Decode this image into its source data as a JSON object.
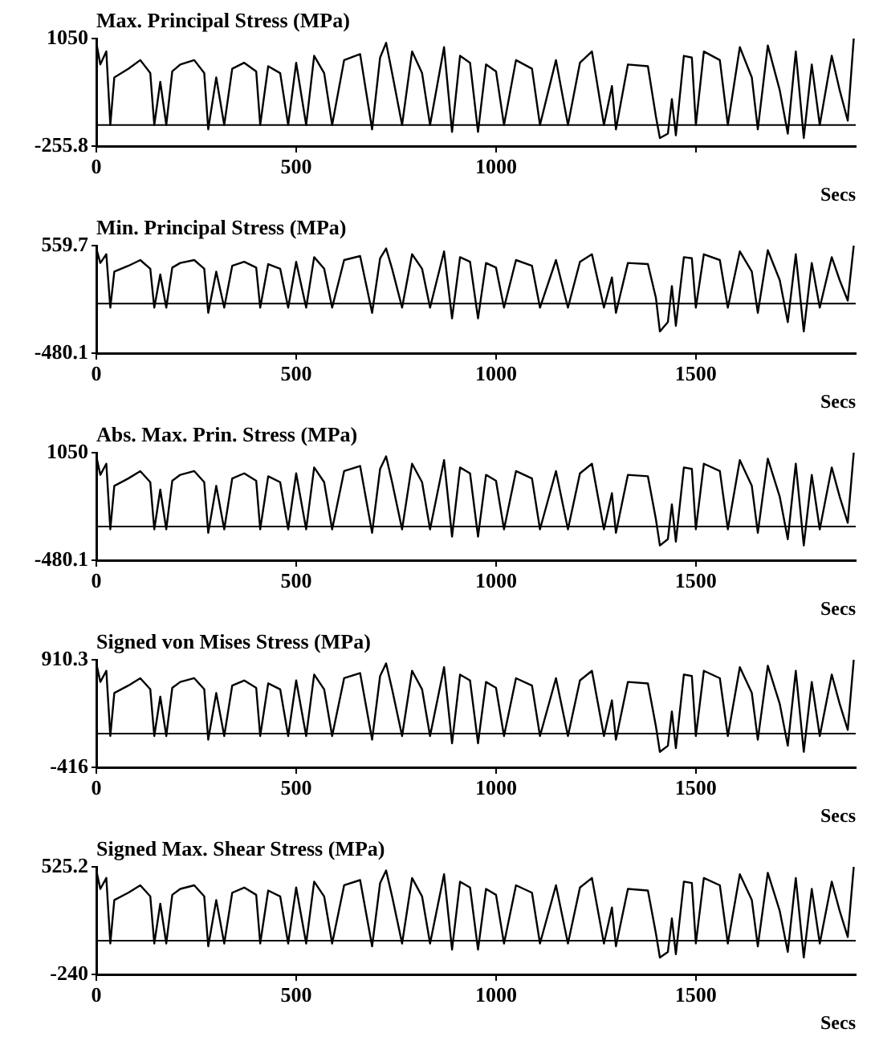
{
  "chart_data": [
    {
      "type": "line",
      "title": "Max. Principal Stress (MPa)",
      "xlabel": "Secs",
      "color": "#000000",
      "grid": false,
      "legend": false,
      "xlim": [
        0,
        1900
      ],
      "xticks": [
        0,
        500,
        1000,
        {
          "value": 1500,
          "label": null
        }
      ],
      "ylim": [
        -255.8,
        1050
      ],
      "yticks": [
        -255.8,
        1050
      ],
      "ref_lines": [
        {
          "axis": "y",
          "value": 0
        }
      ],
      "x": [
        0,
        10,
        25,
        35,
        45,
        80,
        110,
        135,
        145,
        160,
        175,
        190,
        210,
        245,
        270,
        280,
        300,
        320,
        340,
        370,
        400,
        410,
        430,
        460,
        480,
        500,
        525,
        545,
        570,
        590,
        620,
        660,
        690,
        710,
        725,
        740,
        765,
        790,
        815,
        835,
        870,
        890,
        910,
        935,
        955,
        975,
        1000,
        1020,
        1050,
        1090,
        1110,
        1150,
        1180,
        1210,
        1240,
        1270,
        1290,
        1300,
        1330,
        1380,
        1400,
        1410,
        1430,
        1440,
        1450,
        1470,
        1490,
        1500,
        1520,
        1560,
        1580,
        1610,
        1640,
        1655,
        1680,
        1710,
        1730,
        1750,
        1770,
        1790,
        1810,
        1840,
        1860,
        1880,
        1895
      ],
      "values": [
        998,
        735,
        893,
        0,
        578,
        683,
        788,
        630,
        0,
        525,
        0,
        651,
        735,
        788,
        630,
        -53,
        578,
        0,
        683,
        756,
        651,
        0,
        714,
        630,
        0,
        756,
        0,
        840,
        630,
        0,
        788,
        861,
        -53,
        819,
        998,
        630,
        0,
        893,
        630,
        0,
        945,
        -84,
        840,
        756,
        -84,
        735,
        651,
        0,
        788,
        683,
        0,
        788,
        0,
        756,
        893,
        0,
        473,
        -53,
        735,
        714,
        105,
        -158,
        -105,
        315,
        -126,
        840,
        819,
        0,
        893,
        788,
        0,
        945,
        578,
        -53,
        966,
        420,
        -105,
        893,
        -158,
        735,
        0,
        840,
        420,
        53,
        1050
      ]
    },
    {
      "type": "line",
      "title": "Min. Principal Stress (MPa)",
      "xlabel": "Secs",
      "color": "#000000",
      "grid": false,
      "legend": false,
      "xlim": [
        0,
        1900
      ],
      "xticks": [
        0,
        500,
        1000,
        1500
      ],
      "ylim": [
        -480.1,
        559.7
      ],
      "yticks": [
        -480.1,
        559.7
      ],
      "ref_lines": [
        {
          "axis": "y",
          "value": 0
        }
      ],
      "x": [
        0,
        10,
        25,
        35,
        45,
        80,
        110,
        135,
        145,
        160,
        175,
        190,
        210,
        245,
        270,
        280,
        300,
        320,
        340,
        370,
        400,
        410,
        430,
        460,
        480,
        500,
        525,
        545,
        570,
        590,
        620,
        660,
        690,
        710,
        725,
        740,
        765,
        790,
        815,
        835,
        870,
        890,
        910,
        935,
        955,
        975,
        1000,
        1020,
        1050,
        1090,
        1110,
        1150,
        1180,
        1210,
        1240,
        1270,
        1290,
        1300,
        1330,
        1380,
        1400,
        1410,
        1430,
        1440,
        1450,
        1470,
        1490,
        1500,
        1520,
        1560,
        1580,
        1610,
        1640,
        1655,
        1680,
        1710,
        1730,
        1750,
        1770,
        1790,
        1810,
        1840,
        1860,
        1880,
        1895
      ],
      "values": [
        532,
        392,
        476,
        -40,
        308,
        364,
        420,
        336,
        -40,
        280,
        -40,
        347,
        392,
        420,
        336,
        -90,
        308,
        -40,
        364,
        403,
        347,
        -40,
        381,
        336,
        -40,
        403,
        -40,
        448,
        336,
        -40,
        420,
        459,
        -90,
        437,
        532,
        336,
        -40,
        476,
        336,
        -40,
        504,
        -144,
        448,
        403,
        -144,
        392,
        347,
        -40,
        420,
        364,
        -40,
        420,
        -40,
        403,
        476,
        -40,
        252,
        -90,
        392,
        381,
        56,
        -270,
        -180,
        168,
        -216,
        448,
        437,
        -40,
        476,
        420,
        -40,
        504,
        308,
        -90,
        515,
        224,
        -180,
        476,
        -270,
        392,
        -40,
        448,
        224,
        28,
        559
      ]
    },
    {
      "type": "line",
      "title": "Abs. Max. Prin. Stress (MPa)",
      "xlabel": "Secs",
      "color": "#000000",
      "grid": false,
      "legend": false,
      "xlim": [
        0,
        1900
      ],
      "xticks": [
        0,
        500,
        1000,
        1500
      ],
      "ylim": [
        -480.1,
        1050
      ],
      "yticks": [
        -480.1,
        1050
      ],
      "ref_lines": [
        {
          "axis": "y",
          "value": 0
        }
      ],
      "x": [
        0,
        10,
        25,
        35,
        45,
        80,
        110,
        135,
        145,
        160,
        175,
        190,
        210,
        245,
        270,
        280,
        300,
        320,
        340,
        370,
        400,
        410,
        430,
        460,
        480,
        500,
        525,
        545,
        570,
        590,
        620,
        660,
        690,
        710,
        725,
        740,
        765,
        790,
        815,
        835,
        870,
        890,
        910,
        935,
        955,
        975,
        1000,
        1020,
        1050,
        1090,
        1110,
        1150,
        1180,
        1210,
        1240,
        1270,
        1290,
        1300,
        1330,
        1380,
        1400,
        1410,
        1430,
        1440,
        1450,
        1470,
        1490,
        1500,
        1520,
        1560,
        1580,
        1610,
        1640,
        1655,
        1680,
        1710,
        1730,
        1750,
        1770,
        1790,
        1810,
        1840,
        1860,
        1880,
        1895
      ],
      "values": [
        998,
        735,
        893,
        -40,
        578,
        683,
        788,
        630,
        -40,
        525,
        -40,
        651,
        735,
        788,
        630,
        -90,
        578,
        -40,
        683,
        756,
        651,
        -40,
        714,
        630,
        -40,
        756,
        -40,
        840,
        630,
        -40,
        788,
        861,
        -90,
        819,
        998,
        630,
        -40,
        893,
        630,
        -40,
        945,
        -144,
        840,
        756,
        -144,
        735,
        651,
        -40,
        788,
        683,
        -40,
        788,
        -40,
        756,
        893,
        -40,
        473,
        -90,
        735,
        714,
        105,
        -270,
        -180,
        315,
        -216,
        840,
        819,
        -40,
        893,
        788,
        -40,
        945,
        578,
        -90,
        966,
        420,
        -180,
        893,
        -270,
        735,
        -40,
        840,
        420,
        53,
        1050
      ]
    },
    {
      "type": "line",
      "title": "Signed von Mises Stress (MPa)",
      "xlabel": "Secs",
      "color": "#000000",
      "grid": false,
      "legend": false,
      "xlim": [
        0,
        1900
      ],
      "xticks": [
        0,
        500,
        1000,
        1500
      ],
      "ylim": [
        -416,
        910.3
      ],
      "yticks": [
        -416,
        910.3
      ],
      "ref_lines": [
        {
          "axis": "y",
          "value": 0
        }
      ],
      "x": [
        0,
        10,
        25,
        35,
        45,
        80,
        110,
        135,
        145,
        160,
        175,
        190,
        210,
        245,
        270,
        280,
        300,
        320,
        340,
        370,
        400,
        410,
        430,
        460,
        480,
        500,
        525,
        545,
        570,
        590,
        620,
        660,
        690,
        710,
        725,
        740,
        765,
        790,
        815,
        835,
        870,
        890,
        910,
        935,
        955,
        975,
        1000,
        1020,
        1050,
        1090,
        1110,
        1150,
        1180,
        1210,
        1240,
        1270,
        1290,
        1300,
        1330,
        1380,
        1400,
        1410,
        1430,
        1440,
        1450,
        1470,
        1490,
        1500,
        1520,
        1560,
        1580,
        1610,
        1640,
        1655,
        1680,
        1710,
        1730,
        1750,
        1770,
        1790,
        1810,
        1840,
        1860,
        1880,
        1895
      ],
      "values": [
        865,
        637,
        774,
        -30,
        501,
        592,
        683,
        546,
        -30,
        455,
        -30,
        564,
        637,
        683,
        546,
        -75,
        501,
        -30,
        592,
        655,
        564,
        -30,
        619,
        546,
        -30,
        655,
        -30,
        728,
        546,
        -30,
        683,
        746,
        -75,
        710,
        865,
        546,
        -30,
        774,
        546,
        -30,
        819,
        -120,
        728,
        655,
        -120,
        637,
        564,
        -30,
        683,
        592,
        -30,
        683,
        -30,
        655,
        774,
        -30,
        410,
        -75,
        637,
        619,
        91,
        -225,
        -150,
        273,
        -180,
        728,
        710,
        -30,
        774,
        683,
        -30,
        819,
        501,
        -75,
        837,
        364,
        -150,
        774,
        -225,
        637,
        -30,
        728,
        364,
        46,
        910
      ]
    },
    {
      "type": "line",
      "title": "Signed Max. Shear Stress (MPa)",
      "xlabel": "Secs",
      "color": "#000000",
      "grid": false,
      "legend": false,
      "xlim": [
        0,
        1900
      ],
      "xticks": [
        0,
        500,
        1000,
        1500
      ],
      "ylim": [
        -240,
        525.2
      ],
      "yticks": [
        -240,
        525.2
      ],
      "ref_lines": [
        {
          "axis": "y",
          "value": 0
        }
      ],
      "x": [
        0,
        10,
        25,
        35,
        45,
        80,
        110,
        135,
        145,
        160,
        175,
        190,
        210,
        245,
        270,
        280,
        300,
        320,
        340,
        370,
        400,
        410,
        430,
        460,
        480,
        500,
        525,
        545,
        570,
        590,
        620,
        660,
        690,
        710,
        725,
        740,
        765,
        790,
        815,
        835,
        870,
        890,
        910,
        935,
        955,
        975,
        1000,
        1020,
        1050,
        1090,
        1110,
        1150,
        1180,
        1210,
        1240,
        1270,
        1290,
        1300,
        1330,
        1380,
        1400,
        1410,
        1430,
        1440,
        1450,
        1470,
        1490,
        1500,
        1520,
        1560,
        1580,
        1610,
        1640,
        1655,
        1680,
        1710,
        1730,
        1750,
        1770,
        1790,
        1810,
        1840,
        1860,
        1880,
        1895
      ],
      "values": [
        499,
        368,
        446,
        -20,
        289,
        341,
        394,
        315,
        -20,
        263,
        -20,
        326,
        368,
        394,
        315,
        -40,
        289,
        -20,
        341,
        378,
        326,
        -20,
        357,
        315,
        -20,
        378,
        -20,
        420,
        315,
        -20,
        394,
        431,
        -40,
        410,
        499,
        315,
        -20,
        446,
        315,
        -20,
        473,
        -64,
        420,
        378,
        -64,
        368,
        326,
        -20,
        394,
        341,
        -20,
        394,
        -20,
        378,
        446,
        -20,
        236,
        -40,
        368,
        357,
        53,
        -120,
        -80,
        158,
        -96,
        420,
        410,
        -20,
        446,
        394,
        -20,
        473,
        289,
        -40,
        483,
        210,
        -80,
        446,
        -120,
        368,
        -20,
        420,
        210,
        26,
        525
      ]
    }
  ]
}
